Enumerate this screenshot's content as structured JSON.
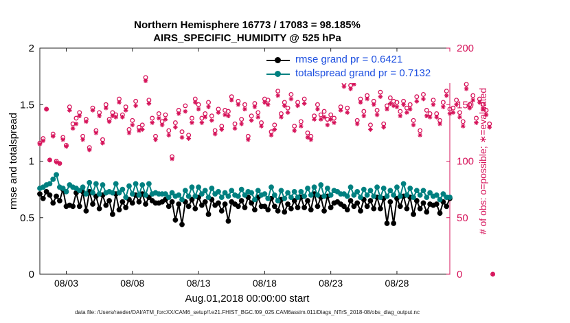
{
  "header": {
    "title_line1": "Northern Hemisphere 16773 / 17083 = 98.185%",
    "title_line2": "AIRS_SPECIFIC_HUMIDITY @ 525 hPa"
  },
  "footer": {
    "data_file": "data file: /Users/raeder/DAI/ATM_forcXX/CAM6_setup/f.e21.FHIST_BGC.f09_025.CAM6assim.011/Diags_NTrS_2018-08/obs_diag_output.nc"
  },
  "legend": {
    "rmse_label": "rmse grand pr = 0.6421",
    "spread_label": "totalspread grand pr = 0.7132"
  },
  "colors": {
    "rmse": "#000000",
    "spread": "#008080",
    "obs": "#d6135a",
    "legend_text": "#1d4fe0"
  },
  "chart_data": {
    "type": "line",
    "title": "Northern Hemisphere 16773 / 17083 = 98.185% — AIRS_SPECIFIC_HUMIDITY @ 525 hPa",
    "xlabel": "Aug.01,2018 00:00:00 start",
    "ylabel": "rmse and totalspread",
    "y2label": "# of obs: o=possible; ∗=evaluated",
    "xlim": [
      1,
      32
    ],
    "ylim": [
      0,
      2
    ],
    "y2lim": [
      0,
      200
    ],
    "xticks": [
      3,
      8,
      13,
      18,
      23,
      28
    ],
    "xtick_labels": [
      "08/03",
      "08/08",
      "08/13",
      "08/18",
      "08/23",
      "08/28"
    ],
    "yticks": [
      0,
      0.5,
      1,
      1.5,
      2
    ],
    "ytick_labels": [
      "0",
      "0.5",
      "1",
      "1.5",
      "2"
    ],
    "y2ticks": [
      0,
      50,
      100,
      150,
      200
    ],
    "y2tick_labels": [
      "0",
      "50",
      "100",
      "150",
      "200"
    ],
    "x_start": 1.0,
    "x_step": 0.25,
    "series": [
      {
        "name": "rmse grand pr = 0.6421",
        "axis": "left",
        "values": [
          0.71,
          0.67,
          0.73,
          0.7,
          0.63,
          0.69,
          0.65,
          0.75,
          0.6,
          0.61,
          0.6,
          0.72,
          0.6,
          0.73,
          0.56,
          0.73,
          0.62,
          0.69,
          0.58,
          0.7,
          0.61,
          0.65,
          0.53,
          0.71,
          0.57,
          0.64,
          0.59,
          0.66,
          0.63,
          0.7,
          0.64,
          0.71,
          0.62,
          0.68,
          0.65,
          0.63,
          0.63,
          0.64,
          0.66,
          0.6,
          0.64,
          0.48,
          0.62,
          0.44,
          0.64,
          0.6,
          0.66,
          0.58,
          0.68,
          0.61,
          0.64,
          0.53,
          0.66,
          0.61,
          0.63,
          0.56,
          0.62,
          0.47,
          0.64,
          0.62,
          0.6,
          0.65,
          0.59,
          0.68,
          0.63,
          0.57,
          0.68,
          0.6,
          0.6,
          0.57,
          0.67,
          0.6,
          0.56,
          0.66,
          0.55,
          0.62,
          0.58,
          0.65,
          0.59,
          0.68,
          0.59,
          0.65,
          0.57,
          0.71,
          0.6,
          0.68,
          0.56,
          0.69,
          0.59,
          0.63,
          0.64,
          0.62,
          0.6,
          0.57,
          0.65,
          0.6,
          0.63,
          0.56,
          0.66,
          0.6,
          0.65,
          0.58,
          0.68,
          0.58,
          0.67,
          0.45,
          0.64,
          0.45,
          0.67,
          0.6,
          0.69,
          0.58,
          0.68,
          0.53,
          0.65,
          0.58,
          0.63,
          0.55,
          0.62,
          0.61,
          0.62,
          0.54,
          0.64,
          0.6,
          0.67
        ]
      },
      {
        "name": "totalspread grand pr = 0.7132",
        "axis": "left",
        "values": [
          0.76,
          0.77,
          0.79,
          0.8,
          0.84,
          0.88,
          0.77,
          0.76,
          0.73,
          0.79,
          0.77,
          0.76,
          0.74,
          0.77,
          0.71,
          0.81,
          0.72,
          0.8,
          0.71,
          0.79,
          0.72,
          0.73,
          0.72,
          0.8,
          0.72,
          0.75,
          0.68,
          0.78,
          0.71,
          0.8,
          0.7,
          0.79,
          0.7,
          0.8,
          0.71,
          0.72,
          0.71,
          0.71,
          0.71,
          0.68,
          0.72,
          0.69,
          0.7,
          0.66,
          0.74,
          0.69,
          0.77,
          0.69,
          0.77,
          0.71,
          0.74,
          0.68,
          0.76,
          0.71,
          0.73,
          0.68,
          0.72,
          0.69,
          0.74,
          0.7,
          0.69,
          0.75,
          0.7,
          0.73,
          0.72,
          0.66,
          0.74,
          0.7,
          0.71,
          0.67,
          0.77,
          0.7,
          0.65,
          0.74,
          0.67,
          0.72,
          0.68,
          0.73,
          0.68,
          0.73,
          0.69,
          0.76,
          0.7,
          0.77,
          0.7,
          0.79,
          0.69,
          0.76,
          0.7,
          0.74,
          0.73,
          0.71,
          0.71,
          0.69,
          0.77,
          0.7,
          0.73,
          0.68,
          0.75,
          0.7,
          0.74,
          0.69,
          0.77,
          0.68,
          0.76,
          0.69,
          0.74,
          0.7,
          0.77,
          0.69,
          0.8,
          0.7,
          0.76,
          0.68,
          0.74,
          0.7,
          0.74,
          0.68,
          0.72,
          0.69,
          0.7,
          0.66,
          0.71,
          0.68,
          0.68
        ]
      },
      {
        "name": "possible obs (o)",
        "axis": "right",
        "values": [
          116,
          120,
          146,
          101,
          124,
          100,
          98,
          121,
          114,
          148,
          133,
          138,
          143,
          122,
          137,
          112,
          147,
          127,
          143,
          119,
          150,
          137,
          143,
          141,
          155,
          141,
          148,
          128,
          136,
          153,
          130,
          132,
          174,
          154,
          138,
          122,
          142,
          135,
          141,
          127,
          104,
          134,
          145,
          126,
          149,
          123,
          138,
          155,
          150,
          138,
          142,
          152,
          140,
          127,
          146,
          131,
          145,
          144,
          157,
          133,
          153,
          137,
          150,
          122,
          140,
          151,
          143,
          134,
          155,
          154,
          126,
          132,
          162,
          142,
          152,
          147,
          159,
          131,
          152,
          135,
          155,
          125,
          122,
          140,
          150,
          141,
          144,
          137,
          141,
          138,
          173,
          148,
          169,
          147,
          167,
          170,
          136,
          155,
          144,
          158,
          132,
          153,
          145,
          161,
          133,
          149,
          156,
          153,
          152,
          144,
          153,
          147,
          150,
          136,
          157,
          127,
          159,
          145,
          142,
          154,
          142,
          136,
          152,
          162,
          146,
          147,
          154,
          143,
          135,
          168,
          150,
          158,
          138,
          155,
          150,
          145,
          133,
          0
        ]
      },
      {
        "name": "evaluated obs (*)",
        "axis": "right",
        "values": [
          115,
          118,
          146,
          101,
          122,
          99,
          98,
          119,
          113,
          145,
          129,
          133,
          140,
          119,
          135,
          110,
          145,
          125,
          140,
          116,
          147,
          135,
          140,
          139,
          152,
          139,
          145,
          125,
          132,
          149,
          127,
          128,
          171,
          151,
          134,
          119,
          138,
          132,
          137,
          123,
          102,
          130,
          142,
          121,
          144,
          120,
          134,
          152,
          146,
          134,
          139,
          148,
          136,
          124,
          143,
          128,
          141,
          140,
          154,
          129,
          150,
          133,
          146,
          119,
          136,
          148,
          139,
          131,
          152,
          150,
          123,
          128,
          158,
          139,
          149,
          143,
          155,
          127,
          149,
          131,
          151,
          121,
          119,
          137,
          146,
          137,
          139,
          132,
          137,
          134,
          172,
          145,
          166,
          143,
          164,
          168,
          133,
          152,
          140,
          155,
          128,
          150,
          141,
          157,
          130,
          146,
          151,
          149,
          148,
          140,
          150,
          143,
          146,
          132,
          153,
          123,
          155,
          140,
          139,
          150,
          139,
          133,
          148,
          158,
          142,
          143,
          150,
          139,
          131,
          164,
          147,
          154,
          134,
          152,
          146,
          141,
          130,
          0
        ]
      }
    ]
  }
}
